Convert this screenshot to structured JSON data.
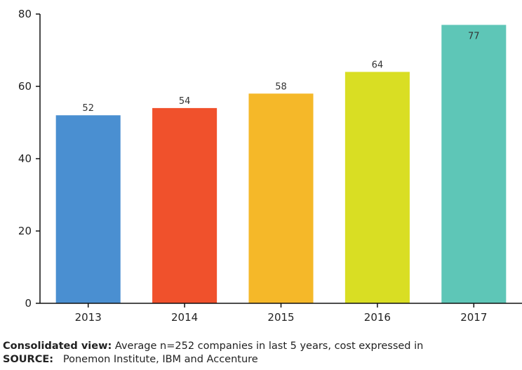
{
  "chart_data": {
    "type": "bar",
    "categories": [
      "2013",
      "2014",
      "2015",
      "2016",
      "2017"
    ],
    "values": [
      52,
      54,
      58,
      64,
      77
    ],
    "data_labels": [
      "52",
      "54",
      "58",
      "64",
      "77"
    ],
    "colors": [
      "#4a8fd1",
      "#f0512c",
      "#f5b829",
      "#d9de23",
      "#5ec6b7"
    ],
    "yticks": [
      "0",
      "20",
      "40",
      "60",
      "80"
    ],
    "ylim": [
      0,
      80
    ],
    "grid": false,
    "title": "",
    "xlabel": "",
    "ylabel": ""
  },
  "caption": {
    "bold_label": "Consolidated view:",
    "text": "Average n=252 companies in last 5 years, cost expressed in",
    "source_label": "SOURCE:",
    "source_text": "Ponemon Institute, IBM and Accenture"
  }
}
